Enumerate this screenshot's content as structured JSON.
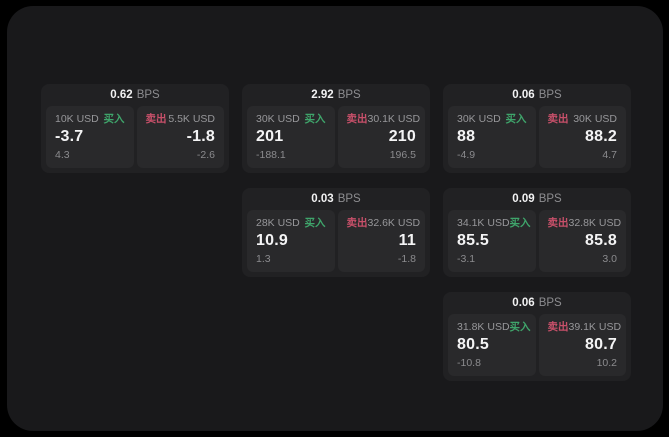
{
  "labels": {
    "bps_unit": "BPS",
    "buy": "买入",
    "sell": "卖出"
  },
  "colors": {
    "page_bg": "#19191b",
    "card_bg": "#212123",
    "panel_bg": "#29292b",
    "buy": "#3fa56b",
    "sell": "#c8506a"
  },
  "cards": [
    {
      "bps": "0.62",
      "buy": {
        "size": "10K USD",
        "price": "-3.7",
        "sub": "4.3"
      },
      "sell": {
        "size": "5.5K USD",
        "price": "-1.8",
        "sub": "-2.6"
      }
    },
    {
      "bps": "2.92",
      "buy": {
        "size": "30K USD",
        "price": "201",
        "sub": "-188.1"
      },
      "sell": {
        "size": "30.1K USD",
        "price": "210",
        "sub": "196.5"
      }
    },
    {
      "bps": "0.06",
      "buy": {
        "size": "30K USD",
        "price": "88",
        "sub": "-4.9"
      },
      "sell": {
        "size": "30K USD",
        "price": "88.2",
        "sub": "4.7"
      }
    },
    {
      "bps": "0.03",
      "buy": {
        "size": "28K USD",
        "price": "10.9",
        "sub": "1.3"
      },
      "sell": {
        "size": "32.6K USD",
        "price": "11",
        "sub": "-1.8"
      }
    },
    {
      "bps": "0.09",
      "buy": {
        "size": "34.1K USD",
        "price": "85.5",
        "sub": "-3.1"
      },
      "sell": {
        "size": "32.8K USD",
        "price": "85.8",
        "sub": "3.0"
      }
    },
    {
      "bps": "0.06",
      "buy": {
        "size": "31.8K USD",
        "price": "80.5",
        "sub": "-10.8"
      },
      "sell": {
        "size": "39.1K USD",
        "price": "80.7",
        "sub": "10.2"
      }
    }
  ]
}
